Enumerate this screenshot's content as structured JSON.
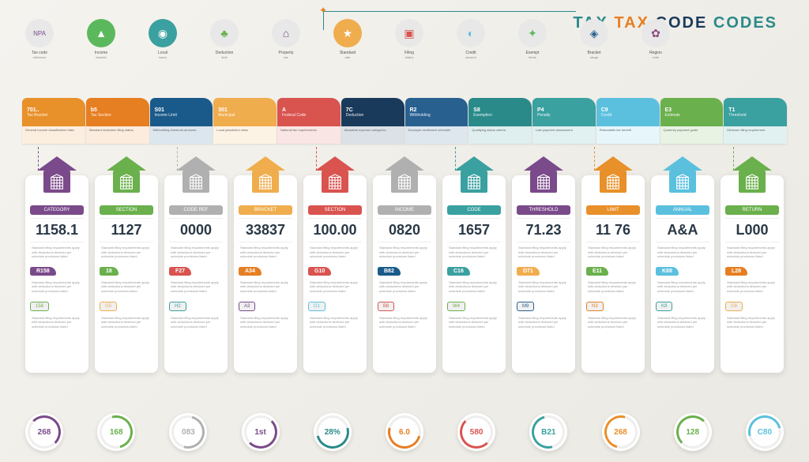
{
  "title": {
    "part1": "TAX",
    "part2": "TAX",
    "part3": "CODE",
    "part4": "CODES"
  },
  "topIcons": [
    {
      "bg": "#e8e8e8",
      "fg": "#7a4a8a",
      "glyph": "NPA",
      "label": "Tax code",
      "sub": "reference"
    },
    {
      "bg": "#5cb85c",
      "fg": "#fff",
      "glyph": "▲",
      "label": "Income",
      "sub": "bracket"
    },
    {
      "bg": "#3aa0a0",
      "fg": "#fff",
      "glyph": "◉",
      "label": "Local",
      "sub": "taxes"
    },
    {
      "bg": "#e8e8e8",
      "fg": "#6ab04c",
      "glyph": "♣",
      "label": "Deduction",
      "sub": "limit"
    },
    {
      "bg": "#e8e8e8",
      "fg": "#7a4a8a",
      "glyph": "⌂",
      "label": "Property",
      "sub": "tax"
    },
    {
      "bg": "#f0ad4e",
      "fg": "#fff",
      "glyph": "★",
      "label": "Standard",
      "sub": "rate"
    },
    {
      "bg": "#e8e8e8",
      "fg": "#d9534f",
      "glyph": "▣",
      "label": "Filing",
      "sub": "status"
    },
    {
      "bg": "#e8e8e8",
      "fg": "#5bc0de",
      "glyph": "◐",
      "label": "Credit",
      "sub": "amount"
    },
    {
      "bg": "#e8e8e8",
      "fg": "#5cb85c",
      "glyph": "✦",
      "label": "Exempt",
      "sub": "items"
    },
    {
      "bg": "#e8e8e8",
      "fg": "#286090",
      "glyph": "◈",
      "label": "Bracket",
      "sub": "range"
    },
    {
      "bg": "#e8e8e8",
      "fg": "#8a4a7a",
      "glyph": "✿",
      "label": "Region",
      "sub": "code"
    }
  ],
  "tabs": [
    {
      "color": "#e8902a",
      "code": "701..",
      "label": "Tax Bracket",
      "desc": "General income classification rates"
    },
    {
      "color": "#e67e22",
      "code": "b5",
      "label": "Tax Section",
      "desc": "Standard deduction filing status"
    },
    {
      "color": "#1a5a8a",
      "code": "S01",
      "label": "Income Limit",
      "desc": "Withholding threshold amounts"
    },
    {
      "color": "#f0ad4e",
      "code": "301",
      "label": "Municipal",
      "desc": "Local jurisdiction rates"
    },
    {
      "color": "#d9534f",
      "code": "A",
      "label": "Federal Code",
      "desc": "National tax requirements"
    },
    {
      "color": "#1a3a5c",
      "code": "7C",
      "label": "Deduction",
      "desc": "Allowable expense categories"
    },
    {
      "color": "#286090",
      "code": "R2",
      "label": "Withholding",
      "desc": "Employer remittance schedule"
    },
    {
      "color": "#2a8a8a",
      "code": "S8",
      "label": "Exemption",
      "desc": "Qualifying status criteria"
    },
    {
      "color": "#3aa0a0",
      "code": "P4",
      "label": "Penalty",
      "desc": "Late payment assessment"
    },
    {
      "color": "#5bc0de",
      "code": "C9",
      "label": "Credit",
      "desc": "Refundable tax benefit"
    },
    {
      "color": "#6ab04c",
      "code": "E3",
      "label": "Estimate",
      "desc": "Quarterly payment guide"
    },
    {
      "color": "#3aa0a0",
      "code": "T1",
      "label": "Threshold",
      "desc": "Minimum filing requirement"
    }
  ],
  "cards": [
    {
      "color": "#7a4a8a",
      "roofColor": "#7a4a8a",
      "header": "CATEGORY",
      "value": "1158.1",
      "badge": "R158",
      "badgeColor": "#7a4a8a",
      "footer": "158",
      "footerColor": "#6ab04c"
    },
    {
      "color": "#6ab04c",
      "roofColor": "#6ab04c",
      "header": "SECTION",
      "value": "1127",
      "badge": "18",
      "badgeColor": "#6ab04c",
      "footer": "G5",
      "footerColor": "#f0ad4e"
    },
    {
      "color": "#b0b0b0",
      "roofColor": "#b0b0b0",
      "header": "CODE REF",
      "value": "0000",
      "badge": "F27",
      "badgeColor": "#d9534f",
      "footer": "H2",
      "footerColor": "#3aa0a0"
    },
    {
      "color": "#f0ad4e",
      "roofColor": "#f0ad4e",
      "header": "BRACKET",
      "value": "33837",
      "badge": "A34",
      "badgeColor": "#e67e22",
      "footer": "A3",
      "footerColor": "#7a4a8a"
    },
    {
      "color": "#d9534f",
      "roofColor": "#d9534f",
      "header": "SECTION",
      "value": "100.00",
      "badge": "G10",
      "badgeColor": "#d9534f",
      "footer": "G1",
      "footerColor": "#5bc0de"
    },
    {
      "color": "#b0b0b0",
      "roofColor": "#b0b0b0",
      "header": "INCOME",
      "value": "0820",
      "badge": "B82",
      "badgeColor": "#1a5a8a",
      "footer": "B8",
      "footerColor": "#d9534f"
    },
    {
      "color": "#3aa0a0",
      "roofColor": "#3aa0a0",
      "header": "CODE",
      "value": "1657",
      "badge": "C16",
      "badgeColor": "#3aa0a0",
      "footer": "W4",
      "footerColor": "#6ab04c"
    },
    {
      "color": "#7a4a8a",
      "roofColor": "#7a4a8a",
      "header": "THRESHOLD",
      "value": "71.23",
      "badge": "D71",
      "badgeColor": "#f0ad4e",
      "footer": "M9",
      "footerColor": "#286090"
    },
    {
      "color": "#e8902a",
      "roofColor": "#e8902a",
      "header": "LIMIT",
      "value": "11 76",
      "badge": "E11",
      "badgeColor": "#6ab04c",
      "footer": "N3",
      "footerColor": "#e67e22"
    },
    {
      "color": "#5bc0de",
      "roofColor": "#5bc0de",
      "header": "ANNUAL",
      "value": "A&A",
      "badge": "K88",
      "badgeColor": "#5bc0de",
      "footer": "K8",
      "footerColor": "#3aa0a0"
    },
    {
      "color": "#6ab04c",
      "roofColor": "#6ab04c",
      "header": "RETURN",
      "value": "L000",
      "badge": "L28",
      "badgeColor": "#e67e22",
      "footer": "G8",
      "footerColor": "#f0ad4e"
    }
  ],
  "bottomCircles": [
    {
      "color": "#7a4a8a",
      "text": "268"
    },
    {
      "color": "#6ab04c",
      "text": "168"
    },
    {
      "color": "#b0b0b0",
      "text": "083"
    },
    {
      "color": "#7a4a8a",
      "text": "1st"
    },
    {
      "color": "#2a8a8a",
      "text": "28%"
    },
    {
      "color": "#e67e22",
      "text": "6.0"
    },
    {
      "color": "#d9534f",
      "text": "580"
    },
    {
      "color": "#3aa0a0",
      "text": "B21"
    },
    {
      "color": "#e8902a",
      "text": "268"
    },
    {
      "color": "#6ab04c",
      "text": "128"
    },
    {
      "color": "#5bc0de",
      "text": "C80"
    }
  ],
  "lorem": "Standard filing requirements apply with deductions itemized per schedule provisions listed"
}
